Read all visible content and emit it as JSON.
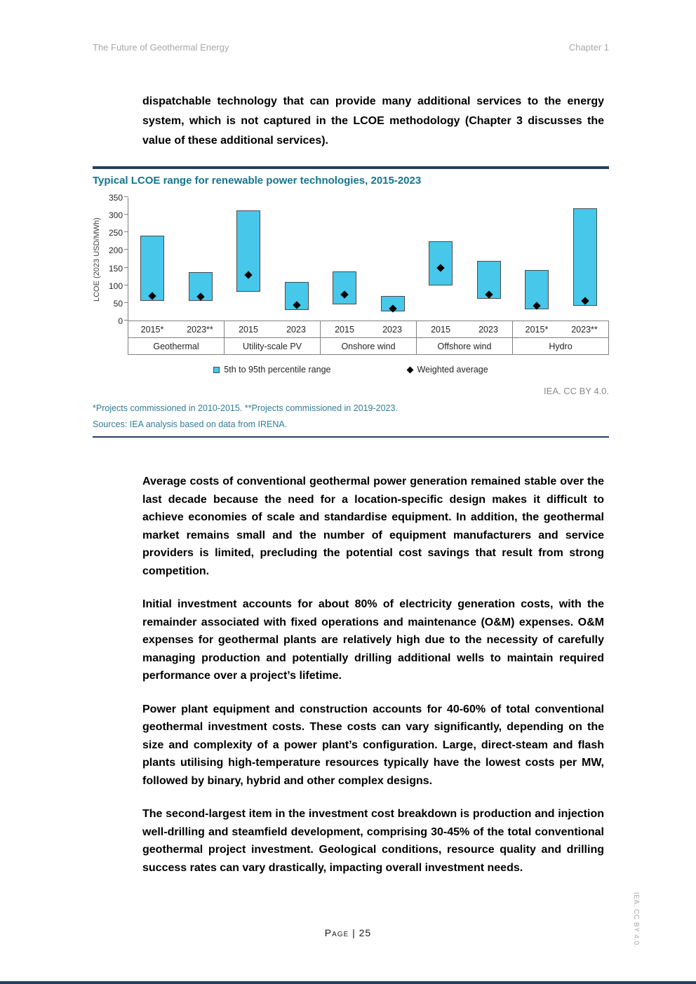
{
  "page": {
    "header_left": "The Future of Geothermal Energy",
    "header_right": "Chapter 1",
    "footer_page": "Page | 25",
    "side_note": "IEA. CC BY 4.0."
  },
  "intro_paragraph": "dispatchable technology that can provide many additional services to the energy system, which is not captured in the LCOE methodology (Chapter 3 discusses the value of these additional services).",
  "chart_data": {
    "type": "bar",
    "title": "Typical LCOE range for renewable power technologies, 2015-2023",
    "ylabel": "LCOE (2023 USD/MWh)",
    "ylim": [
      0,
      350
    ],
    "yticks": [
      0,
      50,
      100,
      150,
      200,
      250,
      300,
      350
    ],
    "legend": [
      "5th to 95th percentile range",
      "Weighted average"
    ],
    "bar_color": "#47c7ea",
    "marker_color": "#000000",
    "groups": [
      {
        "name": "Geothermal",
        "bars": [
          {
            "year": "2015*",
            "low": 55,
            "high": 240,
            "avg": 70
          },
          {
            "year": "2023**",
            "low": 55,
            "high": 138,
            "avg": 68
          }
        ]
      },
      {
        "name": "Utility-scale PV",
        "bars": [
          {
            "year": "2015",
            "low": 82,
            "high": 313,
            "avg": 130
          },
          {
            "year": "2023",
            "low": 30,
            "high": 110,
            "avg": 44
          }
        ]
      },
      {
        "name": "Onshore wind",
        "bars": [
          {
            "year": "2015",
            "low": 45,
            "high": 140,
            "avg": 73
          },
          {
            "year": "2023",
            "low": 26,
            "high": 70,
            "avg": 33
          }
        ]
      },
      {
        "name": "Offshore wind",
        "bars": [
          {
            "year": "2015",
            "low": 100,
            "high": 224,
            "avg": 150
          },
          {
            "year": "2023",
            "low": 62,
            "high": 170,
            "avg": 74
          }
        ]
      },
      {
        "name": "Hydro",
        "bars": [
          {
            "year": "2015*",
            "low": 32,
            "high": 144,
            "avg": 42
          },
          {
            "year": "2023**",
            "low": 42,
            "high": 318,
            "avg": 55
          }
        ]
      }
    ]
  },
  "chart_meta": {
    "attribution": "IEA. CC BY 4.0.",
    "footnote": "*Projects commissioned in 2010-2015. **Projects commissioned in 2019-2023.",
    "sources": "Sources: IEA analysis based on data from IRENA."
  },
  "body_paragraphs": [
    "Average costs of conventional geothermal power generation remained stable over the last decade because the need for a location-specific design makes it difficult to achieve economies of scale and standardise equipment. In addition, the geothermal market remains small and the number of equipment manufacturers and service providers is limited, precluding the potential cost savings that result from strong competition.",
    "Initial investment accounts for about 80% of electricity generation costs, with the remainder associated with fixed operations and maintenance (O&M) expenses. O&M expenses for geothermal plants are relatively high due to the necessity of carefully managing production and potentially drilling additional wells to maintain required performance over a project’s lifetime.",
    "Power plant equipment and construction accounts for 40-60% of total conventional geothermal investment costs. These costs can vary significantly, depending on the size and complexity of a power plant’s configuration. Large, direct-steam and flash plants utilising high-temperature resources typically have the lowest costs per MW, followed by binary, hybrid and other complex designs.",
    "The second-largest item in the investment cost breakdown is production and injection well-drilling and steamfield development, comprising 30-45% of the total conventional geothermal project investment. Geological conditions, resource quality and drilling success rates can vary drastically, impacting overall investment needs."
  ]
}
